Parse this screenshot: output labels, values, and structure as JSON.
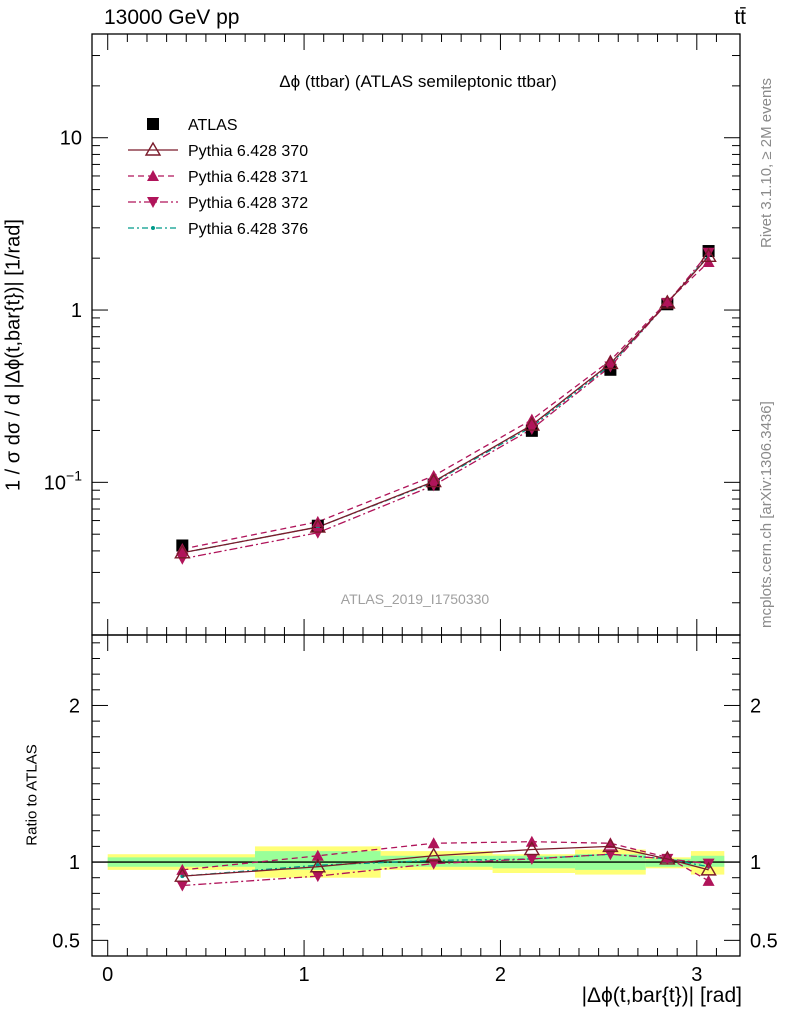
{
  "header": {
    "left": "13000 GeV pp",
    "right": "tt̄"
  },
  "side_labels": {
    "rivet": "Rivet 3.1.10, ≥ 2M events",
    "mcplots": "mcplots.cern.ch [arXiv:1306.3436]"
  },
  "colors": {
    "data": "#000000",
    "pythia370": "#7a1a2a",
    "pythia371": "#b0145a",
    "pythia372": "#b0145a",
    "pythia376": "#009a8a",
    "band_inner": "#99ff99",
    "band_outer": "#ffff77"
  },
  "chart_data": [
    {
      "type": "line",
      "title": "Δϕ (ttbar) (ATLAS semileptonic ttbar)",
      "ylabel": "1 / σ dσ / d |Δϕ(t,bar{t})| [1/rad]",
      "xlabel": "",
      "yscale": "log",
      "ylim": [
        0.013,
        40
      ],
      "xlim": [
        -0.08,
        3.22
      ],
      "ytick_labels": [
        "10^-1",
        "1",
        "10"
      ],
      "watermark": "ATLAS_2019_I1750330",
      "legend_position": "top-left",
      "x": [
        0.38,
        1.07,
        1.66,
        2.16,
        2.56,
        2.85,
        3.06
      ],
      "series": [
        {
          "name": "ATLAS",
          "marker": "square",
          "values": [
            0.043,
            0.056,
            0.097,
            0.199,
            0.45,
            1.08,
            2.2
          ]
        },
        {
          "name": "Pythia 6.428 370",
          "marker": "triangle-up-open",
          "line": "solid",
          "values": [
            0.039,
            0.055,
            0.101,
            0.215,
            0.49,
            1.1,
            2.05
          ]
        },
        {
          "name": "Pythia 6.428 371",
          "marker": "triangle-up",
          "line": "dashed",
          "values": [
            0.041,
            0.059,
            0.109,
            0.231,
            0.51,
            1.12,
            1.9
          ]
        },
        {
          "name": "Pythia 6.428 372",
          "marker": "triangle-down",
          "line": "dashdot",
          "values": [
            0.036,
            0.051,
            0.096,
            0.204,
            0.47,
            1.1,
            2.15
          ]
        },
        {
          "name": "Pythia 6.428 376",
          "marker": "dot",
          "line": "dashdot",
          "values": [
            0.039,
            0.055,
            0.1,
            0.21,
            0.48,
            1.1,
            2.08
          ]
        }
      ]
    },
    {
      "type": "line",
      "title": "",
      "ylabel": "Ratio to ATLAS",
      "xlabel": "|Δϕ(t,bar{t})| [rad]",
      "ylim": [
        0.4,
        2.45
      ],
      "xlim": [
        -0.08,
        3.22
      ],
      "ytick_labels": [
        "0.5",
        "1",
        "2"
      ],
      "xtick_labels": [
        "0",
        "1",
        "2",
        "3"
      ],
      "bins": [
        {
          "lo": 0.0,
          "hi": 0.75,
          "inner": [
            0.97,
            1.03
          ],
          "outer": [
            0.95,
            1.05
          ]
        },
        {
          "lo": 0.75,
          "hi": 1.39,
          "inner": [
            0.95,
            1.07
          ],
          "outer": [
            0.9,
            1.1
          ]
        },
        {
          "lo": 1.39,
          "hi": 1.96,
          "inner": [
            0.97,
            1.04
          ],
          "outer": [
            0.95,
            1.07
          ]
        },
        {
          "lo": 1.96,
          "hi": 2.38,
          "inner": [
            0.96,
            1.04
          ],
          "outer": [
            0.93,
            1.05
          ]
        },
        {
          "lo": 2.38,
          "hi": 2.74,
          "inner": [
            0.95,
            1.05
          ],
          "outer": [
            0.92,
            1.08
          ]
        },
        {
          "lo": 2.74,
          "hi": 2.97,
          "inner": [
            0.97,
            1.02
          ],
          "outer": [
            0.96,
            1.03
          ]
        },
        {
          "lo": 2.97,
          "hi": 3.14,
          "inner": [
            0.97,
            1.04
          ],
          "outer": [
            0.92,
            1.07
          ]
        }
      ],
      "x": [
        0.38,
        1.07,
        1.66,
        2.16,
        2.56,
        2.85,
        3.06
      ],
      "series": [
        {
          "name": "Pythia 6.428 370",
          "values": [
            0.91,
            0.97,
            1.04,
            1.08,
            1.1,
            1.02,
            0.95
          ]
        },
        {
          "name": "Pythia 6.428 371",
          "values": [
            0.95,
            1.04,
            1.12,
            1.13,
            1.12,
            1.03,
            0.88
          ]
        },
        {
          "name": "Pythia 6.428 372",
          "values": [
            0.85,
            0.91,
            0.99,
            1.02,
            1.05,
            1.02,
            0.99
          ]
        },
        {
          "name": "Pythia 6.428 376",
          "values": [
            0.91,
            0.98,
            1.01,
            1.02,
            1.05,
            1.02,
            0.97
          ]
        }
      ]
    }
  ]
}
